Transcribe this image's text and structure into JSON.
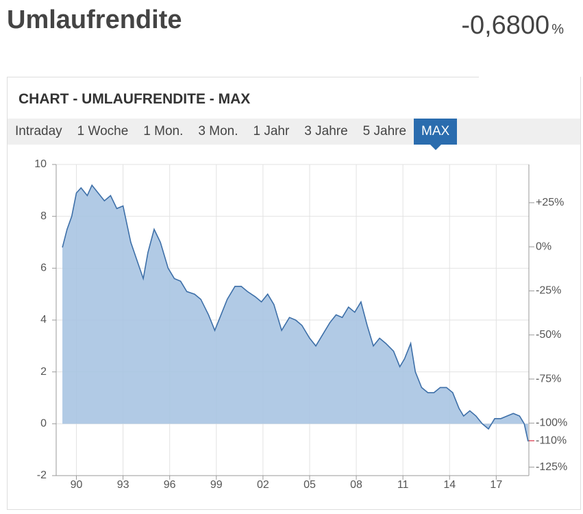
{
  "header": {
    "title": "Umlaufrendite",
    "value": "-0,6800",
    "unit": "%"
  },
  "panel": {
    "title": "CHART - UMLAUFRENDITE - MAX",
    "tabs": [
      "Intraday",
      "1 Woche",
      "1 Mon.",
      "3 Mon.",
      "1 Jahr",
      "3 Jahre",
      "5 Jahre",
      "MAX"
    ],
    "active_tab": 7
  },
  "chart_data": {
    "type": "area",
    "x": [
      1989.1,
      1989.4,
      1989.7,
      1990.0,
      1990.3,
      1990.7,
      1991.0,
      1991.4,
      1991.8,
      1992.2,
      1992.6,
      1993.0,
      1993.5,
      1993.9,
      1994.3,
      1994.6,
      1995.0,
      1995.4,
      1995.9,
      1996.3,
      1996.7,
      1997.1,
      1997.6,
      1998.0,
      1998.5,
      1998.9,
      1999.3,
      1999.7,
      2000.2,
      2000.6,
      2001.0,
      2001.5,
      2001.9,
      2002.3,
      2002.7,
      2003.2,
      2003.7,
      2004.1,
      2004.5,
      2005.0,
      2005.4,
      2005.8,
      2006.3,
      2006.7,
      2007.1,
      2007.5,
      2007.9,
      2008.3,
      2008.7,
      2009.1,
      2009.5,
      2009.9,
      2010.4,
      2010.8,
      2011.1,
      2011.5,
      2011.8,
      2012.2,
      2012.6,
      2013.0,
      2013.4,
      2013.8,
      2014.2,
      2014.6,
      2014.9,
      2015.3,
      2015.7,
      2016.1,
      2016.5,
      2016.9,
      2017.3,
      2017.7,
      2018.1,
      2018.5,
      2018.8,
      2019.05
    ],
    "series": [
      {
        "name": "Umlaufrendite",
        "color": "#3d6fa8",
        "fill": "#a9c4e2",
        "values": [
          6.8,
          7.5,
          8.0,
          8.9,
          9.1,
          8.8,
          9.2,
          8.9,
          8.6,
          8.8,
          8.3,
          8.4,
          7.0,
          6.3,
          5.6,
          6.6,
          7.5,
          7.0,
          6.0,
          5.6,
          5.5,
          5.1,
          5.0,
          4.8,
          4.2,
          3.6,
          4.2,
          4.8,
          5.3,
          5.3,
          5.1,
          4.9,
          4.7,
          5.0,
          4.6,
          3.6,
          4.1,
          4.0,
          3.8,
          3.3,
          3.0,
          3.4,
          3.9,
          4.2,
          4.1,
          4.5,
          4.3,
          4.7,
          3.8,
          3.0,
          3.3,
          3.1,
          2.8,
          2.2,
          2.5,
          3.1,
          2.0,
          1.4,
          1.2,
          1.2,
          1.4,
          1.4,
          1.2,
          0.6,
          0.3,
          0.5,
          0.3,
          0.0,
          -0.2,
          0.2,
          0.2,
          0.3,
          0.4,
          0.3,
          0.0,
          -0.68
        ]
      }
    ],
    "xlim": [
      1988.7,
      2019.1
    ],
    "xticks": [
      {
        "value": 1990,
        "label": "90"
      },
      {
        "value": 1993,
        "label": "93"
      },
      {
        "value": 1996,
        "label": "96"
      },
      {
        "value": 1999,
        "label": "99"
      },
      {
        "value": 2002,
        "label": "02"
      },
      {
        "value": 2005,
        "label": "05"
      },
      {
        "value": 2008,
        "label": "08"
      },
      {
        "value": 2011,
        "label": "11"
      },
      {
        "value": 2014,
        "label": "14"
      },
      {
        "value": 2017,
        "label": "17"
      }
    ],
    "ylim": [
      -2,
      10
    ],
    "yticks": [
      -2,
      0,
      2,
      4,
      6,
      8,
      10
    ],
    "y2lim": [
      -129.8,
      46.7
    ],
    "y2ticks": [
      {
        "value": 25,
        "label": "+25%"
      },
      {
        "value": 0,
        "label": "0%"
      },
      {
        "value": -25,
        "label": "-25%"
      },
      {
        "value": -50,
        "label": "-50%"
      },
      {
        "value": -75,
        "label": "-75%"
      },
      {
        "value": -100,
        "label": "-100%"
      },
      {
        "value": -125,
        "label": "-125%"
      }
    ],
    "current_marker": {
      "value": -110,
      "label": "-110%",
      "color": "#d0021b"
    },
    "grid": true
  }
}
